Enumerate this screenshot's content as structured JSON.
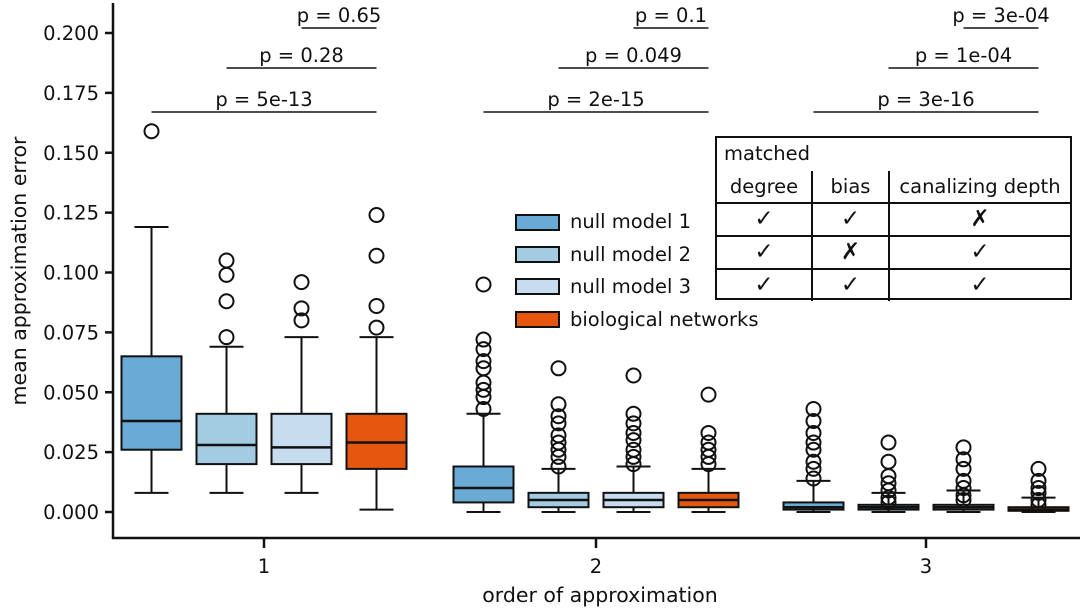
{
  "figure": {
    "background": "#ffffff",
    "ink_color": "#111111"
  },
  "chart_data": {
    "type": "boxplot",
    "title": "",
    "xlabel": "order of approximation",
    "ylabel": "mean approximation error",
    "grid": false,
    "legend_position": "center-left of plot",
    "x_tick_labels": [
      "1",
      "2",
      "3"
    ],
    "y_tick_values": [
      0.0,
      0.025,
      0.05,
      0.075,
      0.1,
      0.125,
      0.15,
      0.175,
      0.2
    ],
    "y_tick_labels": [
      "0.000",
      "0.025",
      "0.050",
      "0.075",
      "0.100",
      "0.125",
      "0.150",
      "0.175",
      "0.200"
    ],
    "ylim": [
      -0.005,
      0.213
    ],
    "series": [
      {
        "name": "null model 1",
        "color": "#69abd5",
        "boxes": [
          {
            "group": "1",
            "whisker_low": 0.008,
            "q1": 0.026,
            "median": 0.038,
            "q3": 0.065,
            "whisker_high": 0.119,
            "outliers": [
              0.159
            ]
          },
          {
            "group": "2",
            "whisker_low": 0.0,
            "q1": 0.004,
            "median": 0.01,
            "q3": 0.019,
            "whisker_high": 0.041,
            "outliers": [
              0.095,
              0.072,
              0.068,
              0.063,
              0.06,
              0.054,
              0.051,
              0.048,
              0.043
            ]
          },
          {
            "group": "3",
            "whisker_low": 0.0,
            "q1": 0.001,
            "median": 0.002,
            "q3": 0.004,
            "whisker_high": 0.013,
            "outliers": [
              0.043,
              0.038,
              0.033,
              0.029,
              0.026,
              0.021,
              0.018,
              0.014
            ]
          }
        ]
      },
      {
        "name": "null model 2",
        "color": "#a3cbe2",
        "boxes": [
          {
            "group": "1",
            "whisker_low": 0.008,
            "q1": 0.02,
            "median": 0.028,
            "q3": 0.041,
            "whisker_high": 0.069,
            "outliers": [
              0.105,
              0.099,
              0.088,
              0.073
            ]
          },
          {
            "group": "2",
            "whisker_low": 0.0,
            "q1": 0.002,
            "median": 0.005,
            "q3": 0.008,
            "whisker_high": 0.018,
            "outliers": [
              0.06,
              0.045,
              0.04,
              0.037,
              0.032,
              0.029,
              0.026,
              0.023,
              0.019
            ]
          },
          {
            "group": "3",
            "whisker_low": 0.0,
            "q1": 0.001,
            "median": 0.002,
            "q3": 0.003,
            "whisker_high": 0.008,
            "outliers": [
              0.029,
              0.021,
              0.015,
              0.012,
              0.009,
              0.006,
              0.004
            ]
          }
        ]
      },
      {
        "name": "null model 3",
        "color": "#c7dcef",
        "boxes": [
          {
            "group": "1",
            "whisker_low": 0.008,
            "q1": 0.02,
            "median": 0.027,
            "q3": 0.041,
            "whisker_high": 0.073,
            "outliers": [
              0.096,
              0.085,
              0.08
            ]
          },
          {
            "group": "2",
            "whisker_low": 0.0,
            "q1": 0.002,
            "median": 0.005,
            "q3": 0.008,
            "whisker_high": 0.019,
            "outliers": [
              0.057,
              0.041,
              0.037,
              0.033,
              0.03,
              0.026,
              0.023,
              0.02
            ]
          },
          {
            "group": "3",
            "whisker_low": 0.0,
            "q1": 0.001,
            "median": 0.002,
            "q3": 0.003,
            "whisker_high": 0.009,
            "outliers": [
              0.027,
              0.022,
              0.018,
              0.013,
              0.01,
              0.007,
              0.005
            ]
          }
        ]
      },
      {
        "name": "biological networks",
        "color": "#e5570e",
        "boxes": [
          {
            "group": "1",
            "whisker_low": 0.001,
            "q1": 0.018,
            "median": 0.029,
            "q3": 0.041,
            "whisker_high": 0.073,
            "outliers": [
              0.124,
              0.107,
              0.086,
              0.077
            ]
          },
          {
            "group": "2",
            "whisker_low": 0.0,
            "q1": 0.002,
            "median": 0.005,
            "q3": 0.008,
            "whisker_high": 0.018,
            "outliers": [
              0.049,
              0.033,
              0.029,
              0.026,
              0.023,
              0.02
            ]
          },
          {
            "group": "3",
            "whisker_low": 0.0,
            "q1": 0.0005,
            "median": 0.001,
            "q3": 0.002,
            "whisker_high": 0.006,
            "outliers": [
              0.018,
              0.013,
              0.01,
              0.008,
              0.005,
              0.003
            ]
          }
        ]
      }
    ],
    "p_value_brackets": [
      {
        "group": "1",
        "level": 0,
        "label": "p = 5e-13",
        "series_a": "null model 1",
        "series_b": "biological networks"
      },
      {
        "group": "1",
        "level": 1,
        "label": "p = 0.28",
        "series_a": "null model 2",
        "series_b": "biological networks"
      },
      {
        "group": "1",
        "level": 2,
        "label": "p = 0.65",
        "series_a": "null model 3",
        "series_b": "biological networks"
      },
      {
        "group": "2",
        "level": 0,
        "label": "p = 2e-15",
        "series_a": "null model 1",
        "series_b": "biological networks"
      },
      {
        "group": "2",
        "level": 1,
        "label": "p = 0.049",
        "series_a": "null model 2",
        "series_b": "biological networks"
      },
      {
        "group": "2",
        "level": 2,
        "label": "p = 0.1",
        "series_a": "null model 3",
        "series_b": "biological networks"
      },
      {
        "group": "3",
        "level": 0,
        "label": "p = 3e-16",
        "series_a": "null model 1",
        "series_b": "biological networks"
      },
      {
        "group": "3",
        "level": 1,
        "label": "p = 1e-04",
        "series_a": "null model 2",
        "series_b": "biological networks"
      },
      {
        "group": "3",
        "level": 2,
        "label": "p = 3e-04",
        "series_a": "null model 3",
        "series_b": "biological networks"
      }
    ]
  },
  "legend": {
    "items": [
      {
        "label": "null model 1",
        "color": "#69abd5"
      },
      {
        "label": "null model 2",
        "color": "#a3cbe2"
      },
      {
        "label": "null model 3",
        "color": "#c7dcef"
      },
      {
        "label": "biological networks",
        "color": "#e5570e"
      }
    ]
  },
  "matched_table": {
    "title": "matched",
    "columns": [
      "degree",
      "bias",
      "canalizing depth"
    ],
    "rows": [
      {
        "series": "null model 1",
        "cells": [
          "✓",
          "✓",
          "✗"
        ]
      },
      {
        "series": "null model 2",
        "cells": [
          "✓",
          "✗",
          "✓"
        ]
      },
      {
        "series": "null model 3",
        "cells": [
          "✓",
          "✓",
          "✓"
        ]
      }
    ]
  }
}
